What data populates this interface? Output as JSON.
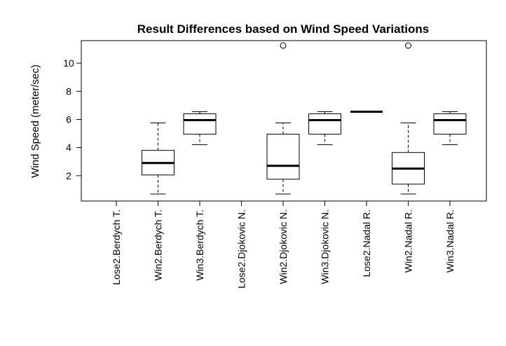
{
  "chart_data": {
    "type": "boxplot",
    "title": "Result Differences based on Wind Speed Variations",
    "xlabel": "",
    "ylabel": "Wind Speed (meter/sec)",
    "ylim": [
      0.2,
      11.6
    ],
    "yticks": [
      2,
      4,
      6,
      8,
      10
    ],
    "categories": [
      "Lose2.Berdych T.",
      "Win2.Berdych T.",
      "Win3.Berdych T.",
      "Lose2.Djokovic N.",
      "Win2.Djokovic N.",
      "Win3.Djokovic N.",
      "Lose2.Nadal R.",
      "Win2.Nadal R.",
      "Win3.Nadal R."
    ],
    "boxes": [
      null,
      {
        "whisker_low": 0.7,
        "q1": 2.05,
        "median": 2.9,
        "q3": 3.8,
        "whisker_high": 5.75,
        "outliers": []
      },
      {
        "whisker_low": 4.2,
        "q1": 4.95,
        "median": 5.95,
        "q3": 6.4,
        "whisker_high": 6.55,
        "outliers": []
      },
      null,
      {
        "whisker_low": 0.7,
        "q1": 1.75,
        "median": 2.7,
        "q3": 4.95,
        "whisker_high": 5.75,
        "outliers": [
          11.25
        ]
      },
      {
        "whisker_low": 4.2,
        "q1": 4.95,
        "median": 5.95,
        "q3": 6.4,
        "whisker_high": 6.55,
        "outliers": []
      },
      {
        "whisker_low": 6.55,
        "q1": 6.55,
        "median": 6.55,
        "q3": 6.55,
        "whisker_high": 6.55,
        "outliers": []
      },
      {
        "whisker_low": 0.7,
        "q1": 1.4,
        "median": 2.5,
        "q3": 3.65,
        "whisker_high": 5.75,
        "outliers": [
          11.25
        ]
      },
      {
        "whisker_low": 4.2,
        "q1": 4.95,
        "median": 5.95,
        "q3": 6.4,
        "whisker_high": 6.55,
        "outliers": []
      }
    ]
  }
}
